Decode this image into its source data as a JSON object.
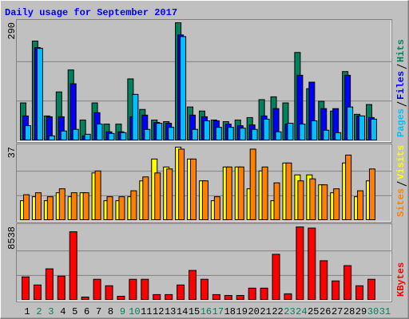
{
  "chart_data": [
    {
      "type": "bar",
      "title": "Daily usage for September 2017",
      "ylim": [
        0,
        290
      ],
      "yticks": [
        290
      ],
      "series": [
        {
          "name": "Hits",
          "color": "#00805c",
          "values": [
            93,
            245,
            61,
            120,
            174,
            51,
            93,
            41,
            41,
            152,
            77,
            51,
            47,
            290,
            83,
            73,
            51,
            47,
            51,
            57,
            101,
            108,
            93,
            217,
            128,
            97,
            73,
            170,
            65,
            89,
            0
          ]
        },
        {
          "name": "Files",
          "color": "#0000ff",
          "values": [
            61,
            229,
            59,
            59,
            140,
            12,
            69,
            22,
            22,
            59,
            63,
            45,
            43,
            260,
            63,
            59,
            49,
            41,
            37,
            39,
            61,
            79,
            41,
            161,
            144,
            79,
            79,
            161,
            61,
            57,
            0
          ]
        },
        {
          "name": "Pages",
          "color": "#00c0ff",
          "values": [
            37,
            227,
            12,
            24,
            28,
            16,
            41,
            18,
            20,
            114,
            28,
            43,
            33,
            256,
            28,
            49,
            33,
            33,
            31,
            28,
            53,
            22,
            43,
            41,
            49,
            26,
            20,
            83,
            61,
            53,
            0
          ]
        }
      ]
    },
    {
      "type": "bar",
      "ylim": [
        0,
        37
      ],
      "yticks": [
        37
      ],
      "series": [
        {
          "name": "Visits",
          "color": "#ffff00",
          "values": [
            10,
            12,
            10,
            14,
            12,
            14,
            24,
            10,
            10,
            12,
            20,
            31,
            27,
            37,
            31,
            20,
            10,
            27,
            27,
            16,
            25,
            10,
            29,
            23,
            23,
            18,
            14,
            29,
            12,
            20,
            0
          ]
        },
        {
          "name": "Sites",
          "color": "#ff8000",
          "values": [
            13,
            14,
            12,
            16,
            14,
            14,
            25,
            12,
            12,
            15,
            22,
            24,
            26,
            36,
            31,
            20,
            12,
            27,
            27,
            36,
            27,
            19,
            29,
            20,
            21,
            18,
            16,
            33,
            15,
            26,
            0
          ]
        }
      ]
    },
    {
      "type": "bar",
      "ylim": [
        0,
        8538
      ],
      "yticks": [
        8538
      ],
      "categories": [
        "1",
        "2",
        "3",
        "4",
        "5",
        "6",
        "7",
        "8",
        "9",
        "10",
        "11",
        "12",
        "13",
        "14",
        "15",
        "16",
        "17",
        "18",
        "19",
        "20",
        "21",
        "22",
        "23",
        "24",
        "25",
        "26",
        "27",
        "28",
        "29",
        "30",
        "31"
      ],
      "category_colors": [
        "#000000",
        "#00805c",
        "#00805c",
        "#000000",
        "#000000",
        "#000000",
        "#000000",
        "#000000",
        "#00805c",
        "#00805c",
        "#000000",
        "#000000",
        "#000000",
        "#000000",
        "#000000",
        "#00805c",
        "#00805c",
        "#000000",
        "#000000",
        "#000000",
        "#000000",
        "#000000",
        "#00805c",
        "#00805c",
        "#000000",
        "#000000",
        "#000000",
        "#000000",
        "#000000",
        "#00805c",
        "#00805c"
      ],
      "series": [
        {
          "name": "KBytes",
          "color": "#ff0000",
          "values": [
            2720,
            1780,
            3660,
            2810,
            7970,
            375,
            2440,
            1690,
            470,
            2440,
            2440,
            660,
            660,
            1780,
            3470,
            2440,
            660,
            560,
            560,
            1410,
            1410,
            5350,
            750,
            8538,
            8400,
            4600,
            2250,
            4030,
            1690,
            2440,
            0
          ]
        }
      ]
    }
  ]
}
